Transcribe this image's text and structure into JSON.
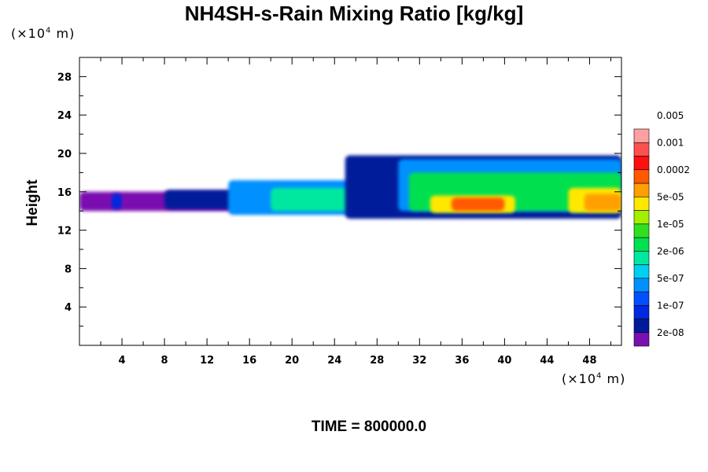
{
  "chart_data": {
    "type": "heatmap",
    "title": "NH4SH-s-Rain Mixing Ratio [kg/kg]",
    "ylabel": "Height",
    "xlabel": "",
    "x_unit_label": "(×10",
    "x_unit_exp": "4",
    "x_unit_suffix": " m)",
    "y_unit_label": "(×10",
    "y_unit_exp": "4",
    "y_unit_suffix": " m)",
    "footer": "TIME = 800000.0",
    "xlim": [
      0,
      51
    ],
    "ylim": [
      0,
      30
    ],
    "x_ticks": [
      "4",
      "8",
      "12",
      "16",
      "20",
      "24",
      "28",
      "32",
      "36",
      "40",
      "44",
      "48"
    ],
    "y_ticks": [
      "4",
      "8",
      "12",
      "16",
      "20",
      "24",
      "28"
    ],
    "colorbar": {
      "colors": [
        "#7a10b0",
        "#001a9a",
        "#0028e0",
        "#0050ff",
        "#0090ff",
        "#00d0f0",
        "#00e8a0",
        "#00e050",
        "#30e020",
        "#a0f000",
        "#ffe800",
        "#ffa000",
        "#ff5a00",
        "#ff1010",
        "#ff5050",
        "#ffa0a0"
      ],
      "labels": [
        "2e-08",
        "1e-07",
        "5e-07",
        "2e-06",
        "1e-05",
        "5e-05",
        "0.0002",
        "0.001",
        "0.005"
      ]
    },
    "regions": [
      {
        "level": 0,
        "x0": 0.0,
        "x1": 51.0,
        "y0": 14.0,
        "y1": 16.0
      },
      {
        "level": 2,
        "x0": 3.0,
        "x1": 4.0,
        "y0": 14.2,
        "y1": 15.8
      },
      {
        "level": 1,
        "x0": 8.0,
        "x1": 18.0,
        "y0": 14.2,
        "y1": 16.2
      },
      {
        "level": 4,
        "x0": 14.0,
        "x1": 30.0,
        "y0": 13.6,
        "y1": 17.2
      },
      {
        "level": 6,
        "x0": 18.0,
        "x1": 28.0,
        "y0": 14.0,
        "y1": 16.4
      },
      {
        "level": 1,
        "x0": 25.0,
        "x1": 51.0,
        "y0": 13.2,
        "y1": 19.8
      },
      {
        "level": 4,
        "x0": 30.0,
        "x1": 51.0,
        "y0": 14.0,
        "y1": 19.4
      },
      {
        "level": 7,
        "x0": 31.0,
        "x1": 51.0,
        "y0": 14.0,
        "y1": 18.0
      },
      {
        "level": 10,
        "x0": 33.0,
        "x1": 41.0,
        "y0": 13.8,
        "y1": 15.6
      },
      {
        "level": 12,
        "x0": 35.0,
        "x1": 40.0,
        "y0": 14.0,
        "y1": 15.4
      },
      {
        "level": 10,
        "x0": 46.0,
        "x1": 51.0,
        "y0": 13.8,
        "y1": 16.4
      },
      {
        "level": 11,
        "x0": 47.5,
        "x1": 51.0,
        "y0": 14.0,
        "y1": 15.8
      }
    ]
  }
}
